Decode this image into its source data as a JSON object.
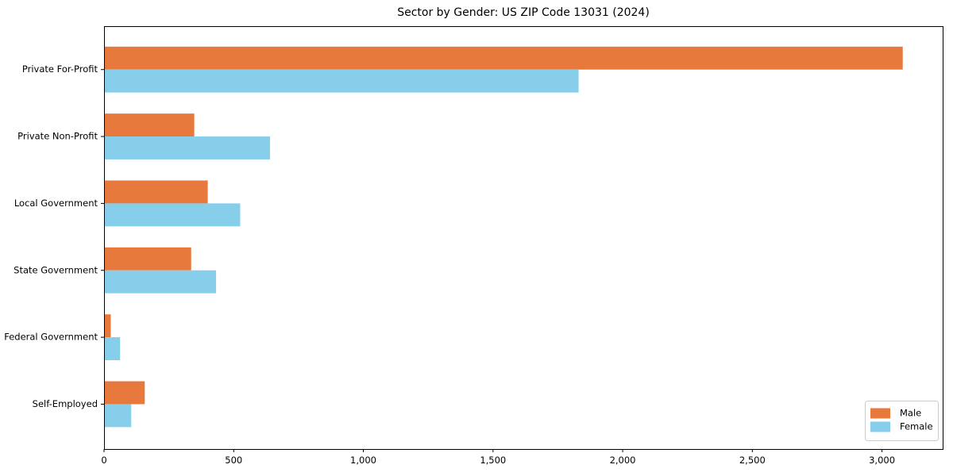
{
  "title": "Sector by Gender: US ZIP Code 13031 (2024)",
  "chart_data": {
    "type": "bar",
    "orientation": "horizontal",
    "title": "Sector by Gender: US ZIP Code 13031 (2024)",
    "xlabel": "",
    "ylabel": "",
    "categories": [
      "Private For-Profit",
      "Private Non-Profit",
      "Local Government",
      "State Government",
      "Federal Government",
      "Self-Employed"
    ],
    "series": [
      {
        "name": "Male",
        "color": "#E8793D",
        "values": [
          3080,
          348,
          400,
          336,
          26,
          157
        ]
      },
      {
        "name": "Female",
        "color": "#87CEEB",
        "values": [
          1830,
          640,
          525,
          432,
          62,
          105
        ]
      }
    ],
    "xlim": [
      0,
      3234
    ],
    "x_ticks": [
      0,
      500,
      1000,
      1500,
      2000,
      2500,
      3000
    ],
    "x_tick_labels": [
      "0",
      "500",
      "1,000",
      "1,500",
      "2,000",
      "2,500",
      "3,000"
    ],
    "grid": false,
    "legend": {
      "position": "lower right",
      "entries": [
        "Male",
        "Female"
      ]
    }
  },
  "colors": {
    "male": "#E8793D",
    "female": "#87CEEB",
    "axis": "#000000",
    "tick_label": "#000000",
    "background": "#FFFFFF",
    "legend_border": "#CCCCCC"
  }
}
